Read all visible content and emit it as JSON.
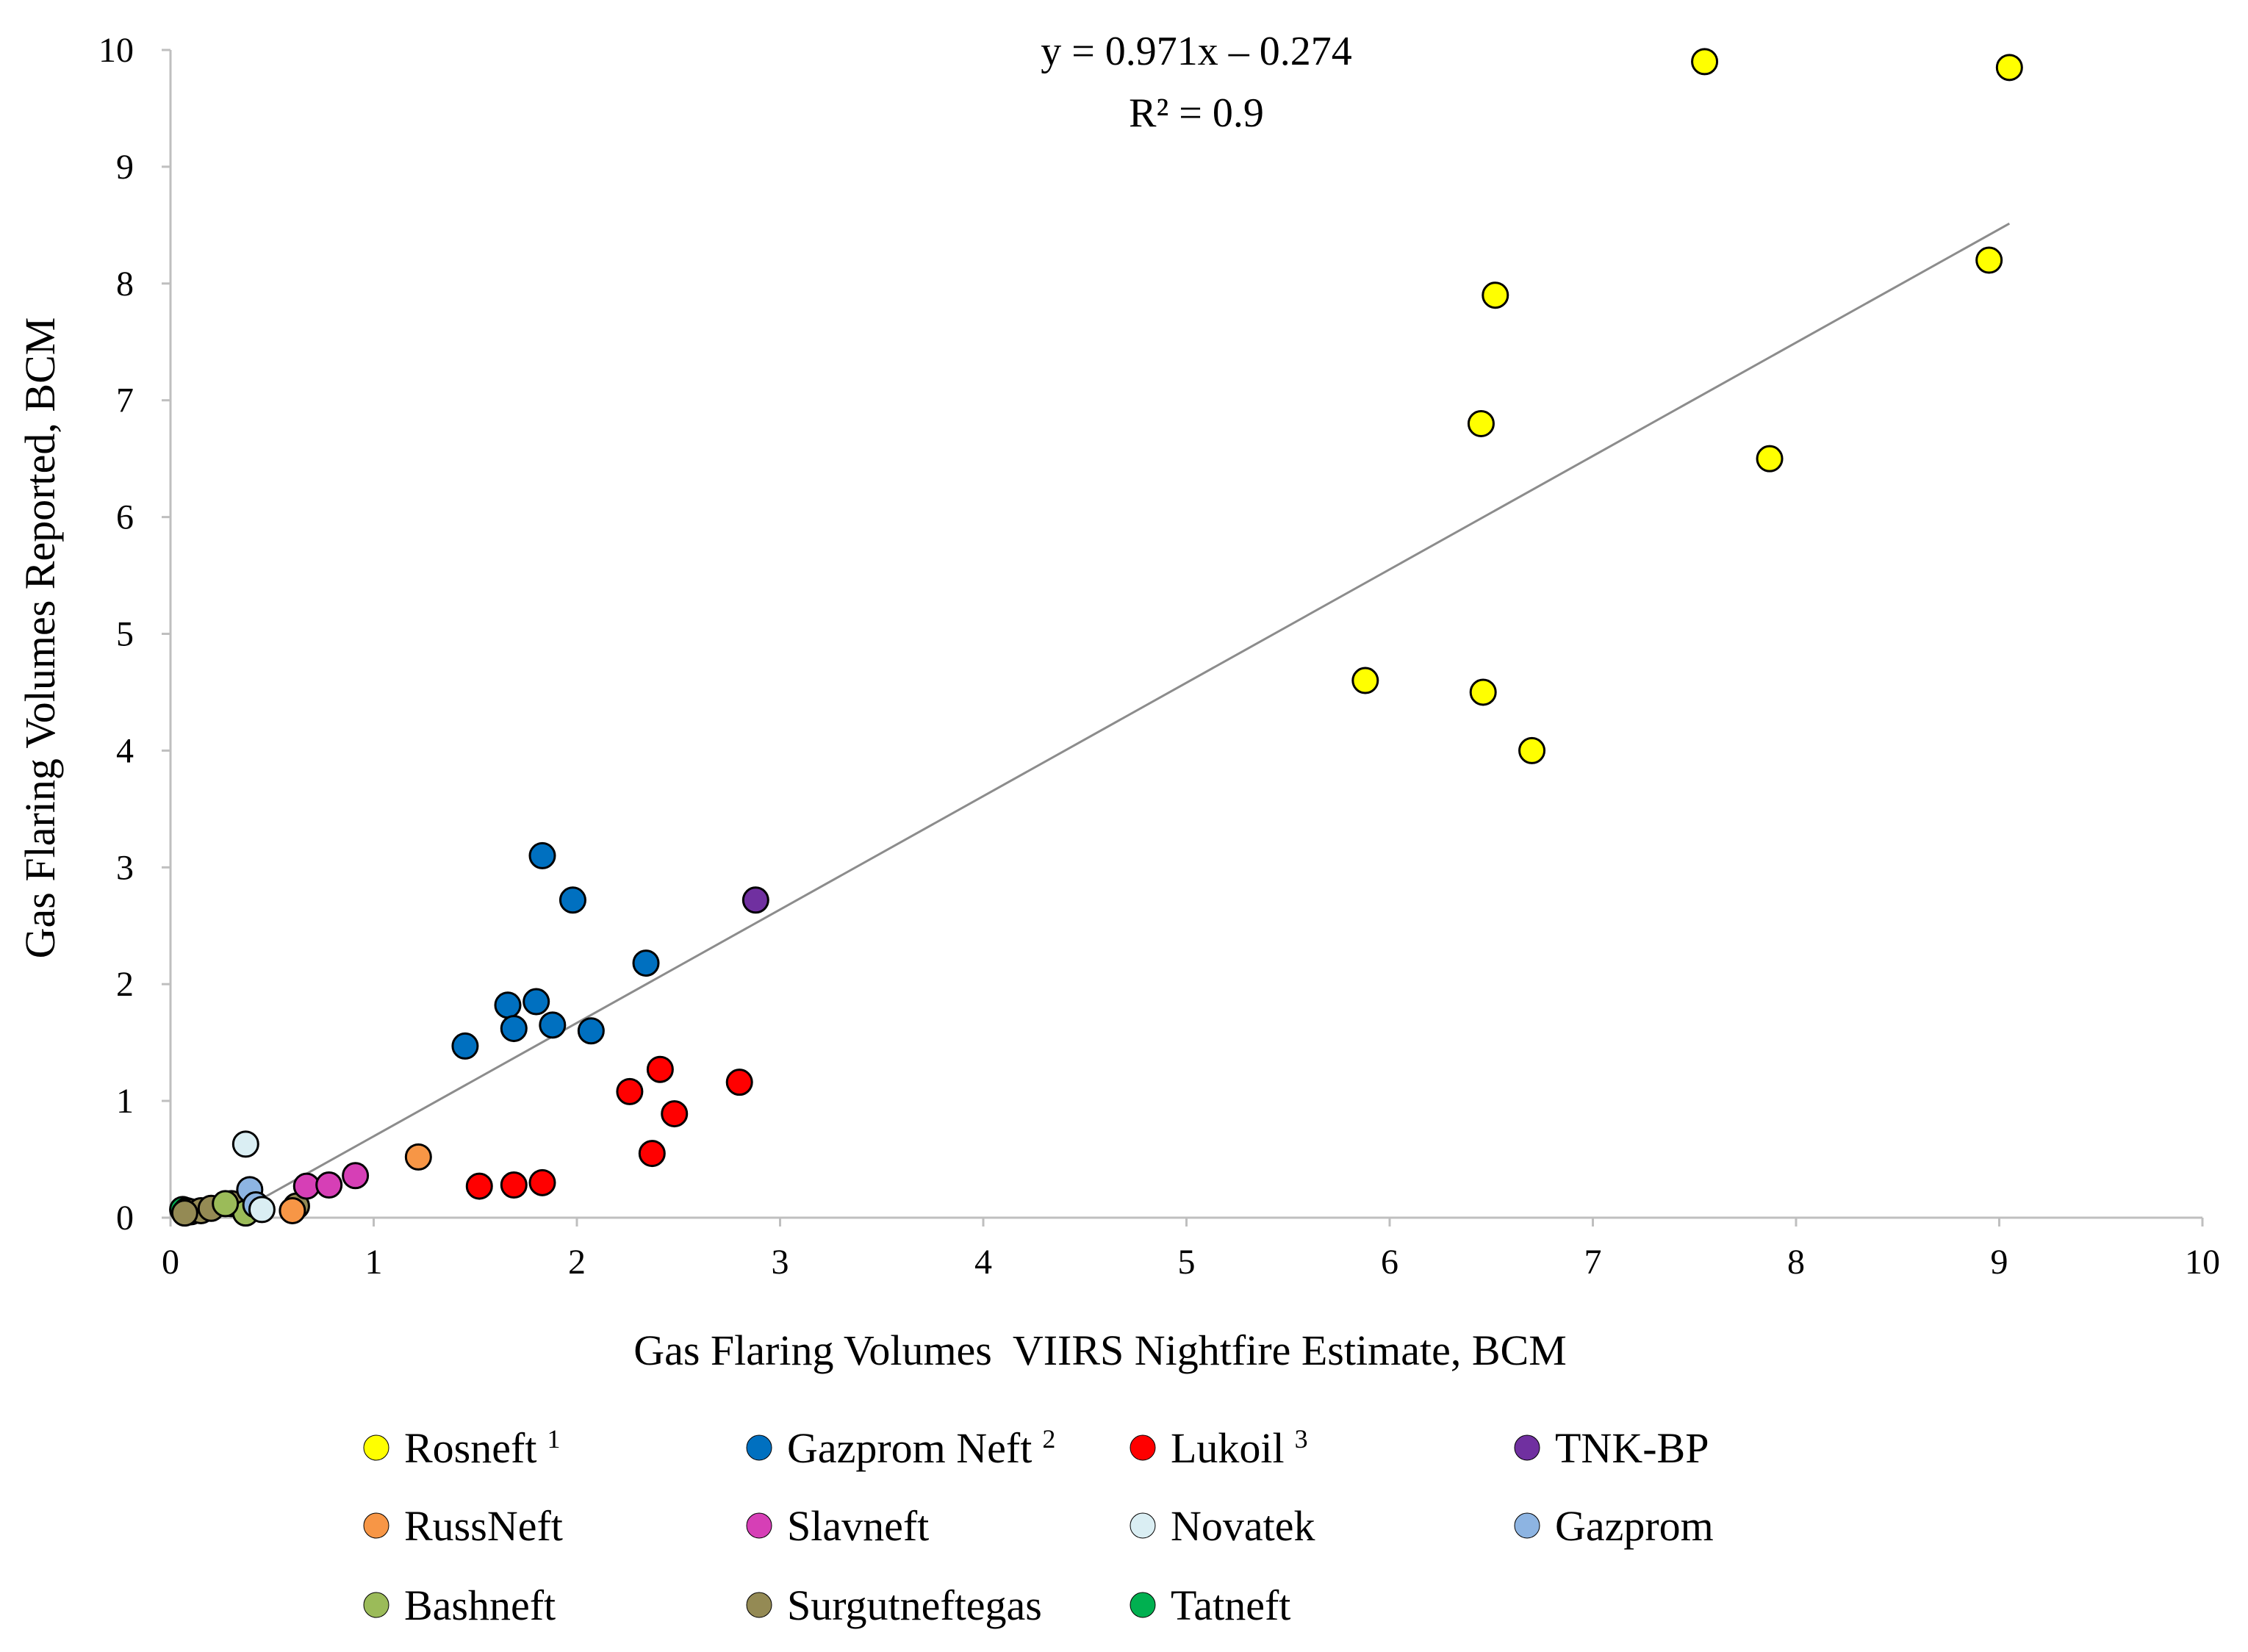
{
  "chart_data": {
    "type": "scatter",
    "title": "",
    "xlabel": "Gas Flaring Volumes  VIIRS Nightfire Estimate, BCM",
    "ylabel": "Gas Flaring Volumes Reported, BCM",
    "xlim": [
      0,
      10
    ],
    "ylim": [
      0,
      10
    ],
    "xticks": [
      0,
      1,
      2,
      3,
      4,
      5,
      6,
      7,
      8,
      9,
      10
    ],
    "yticks": [
      0,
      1,
      2,
      3,
      4,
      5,
      6,
      7,
      8,
      9,
      10
    ],
    "grid": false,
    "legend_position": "bottom",
    "trendline": {
      "equation": "y = 0.971x – 0.274",
      "r2": "R² = 0.9",
      "slope": 0.971,
      "intercept": -0.274,
      "x_range": [
        0.3,
        9.05
      ],
      "color": "#8c8c8c"
    },
    "series": [
      {
        "name": "Rosneft",
        "sup": "1",
        "color": "#FFFF00",
        "points": [
          [
            7.55,
            9.9
          ],
          [
            9.05,
            9.85
          ],
          [
            6.52,
            7.9
          ],
          [
            8.95,
            8.2
          ],
          [
            6.45,
            6.8
          ],
          [
            7.87,
            6.5
          ],
          [
            5.88,
            4.6
          ],
          [
            6.46,
            4.5
          ],
          [
            6.7,
            4.0
          ]
        ]
      },
      {
        "name": "Gazprom Neft",
        "sup": "2",
        "color": "#0070C0",
        "points": [
          [
            1.83,
            3.1
          ],
          [
            1.98,
            2.72
          ],
          [
            2.34,
            2.18
          ],
          [
            1.45,
            1.47
          ],
          [
            1.66,
            1.82
          ],
          [
            1.8,
            1.85
          ],
          [
            1.69,
            1.62
          ],
          [
            1.88,
            1.65
          ],
          [
            2.07,
            1.6
          ]
        ]
      },
      {
        "name": "Lukoil",
        "sup": "3",
        "color": "#FF0000",
        "points": [
          [
            2.41,
            1.27
          ],
          [
            2.26,
            1.08
          ],
          [
            2.8,
            1.16
          ],
          [
            2.48,
            0.89
          ],
          [
            2.37,
            0.55
          ],
          [
            1.52,
            0.27
          ],
          [
            1.69,
            0.28
          ],
          [
            1.83,
            0.3
          ]
        ]
      },
      {
        "name": "TNK-BP",
        "sup": "",
        "color": "#7030A0",
        "points": [
          [
            2.88,
            2.72
          ]
        ]
      },
      {
        "name": "RussNeft",
        "sup": "",
        "color": "#F79646",
        "points": [
          [
            1.22,
            0.52
          ],
          [
            0.6,
            0.06
          ]
        ]
      },
      {
        "name": "Slavneft",
        "sup": "",
        "color": "#D63FB6",
        "points": [
          [
            0.91,
            0.36
          ],
          [
            0.67,
            0.27
          ],
          [
            0.78,
            0.28
          ]
        ]
      },
      {
        "name": "Novatek",
        "sup": "",
        "color": "#DAEEF3",
        "points": [
          [
            0.37,
            0.63
          ],
          [
            0.45,
            0.07
          ]
        ]
      },
      {
        "name": "Gazprom",
        "sup": "",
        "color": "#8DB4E2",
        "points": [
          [
            0.39,
            0.24
          ],
          [
            0.42,
            0.11
          ]
        ]
      },
      {
        "name": "Bashneft",
        "sup": "",
        "color": "#9BBB59",
        "points": [
          [
            0.37,
            0.04
          ],
          [
            0.27,
            0.12
          ]
        ]
      },
      {
        "name": "Surgutneftegas",
        "sup": "",
        "color": "#948A54",
        "points": [
          [
            0.1,
            0.05
          ],
          [
            0.15,
            0.06
          ],
          [
            0.2,
            0.08
          ],
          [
            0.3,
            0.12
          ],
          [
            0.62,
            0.1
          ],
          [
            0.07,
            0.04
          ]
        ]
      },
      {
        "name": "Tatneft",
        "sup": "",
        "color": "#00B050",
        "points": [
          [
            0.06,
            0.07
          ],
          [
            0.08,
            0.06
          ]
        ]
      }
    ]
  }
}
